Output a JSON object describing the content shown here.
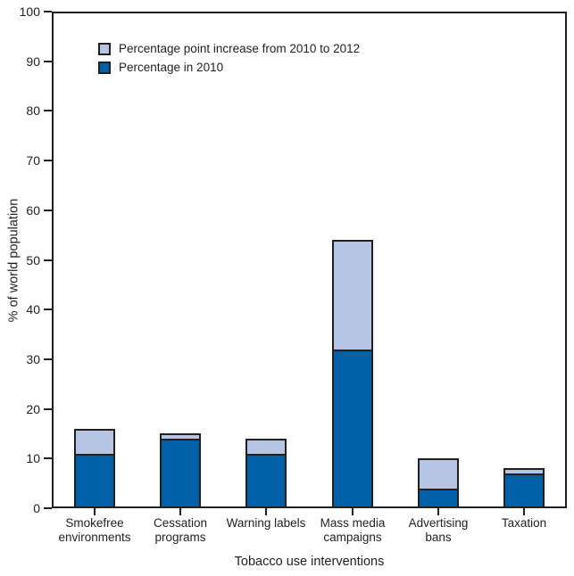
{
  "colors": {
    "background": "#FFFFFF",
    "axis": "#231F20",
    "text": "#231F20",
    "bar_2010": "#0061A9",
    "bar_increase": "#B7C5E4",
    "bar_outline": "#231F20"
  },
  "legend": {
    "items": [
      {
        "label": "Percentage point increase from 2010 to 2012",
        "color": "#B7C5E4"
      },
      {
        "label": "Percentage in 2010",
        "color": "#0061A9"
      }
    ]
  },
  "chart_data": {
    "type": "bar",
    "stacked": true,
    "title": "",
    "xlabel": "Tobacco use interventions",
    "ylabel": "% of world population",
    "ylim": [
      0,
      100
    ],
    "ytick_step": 10,
    "grid": false,
    "legend_position": "top-left-inside",
    "categories": [
      "Smokefree environments",
      "Cessation programs",
      "Warning labels",
      "Mass media campaigns",
      "Advertising bans",
      "Taxation"
    ],
    "series": [
      {
        "name": "Percentage in 2010",
        "color": "#0061A9",
        "values": [
          11,
          14,
          11,
          32,
          4,
          7
        ]
      },
      {
        "name": "Percentage point increase from 2010 to 2012",
        "color": "#B7C5E4",
        "values": [
          5,
          1,
          3,
          22,
          6,
          1
        ]
      }
    ],
    "stack_totals": [
      16,
      15,
      14,
      54,
      10,
      8
    ]
  }
}
